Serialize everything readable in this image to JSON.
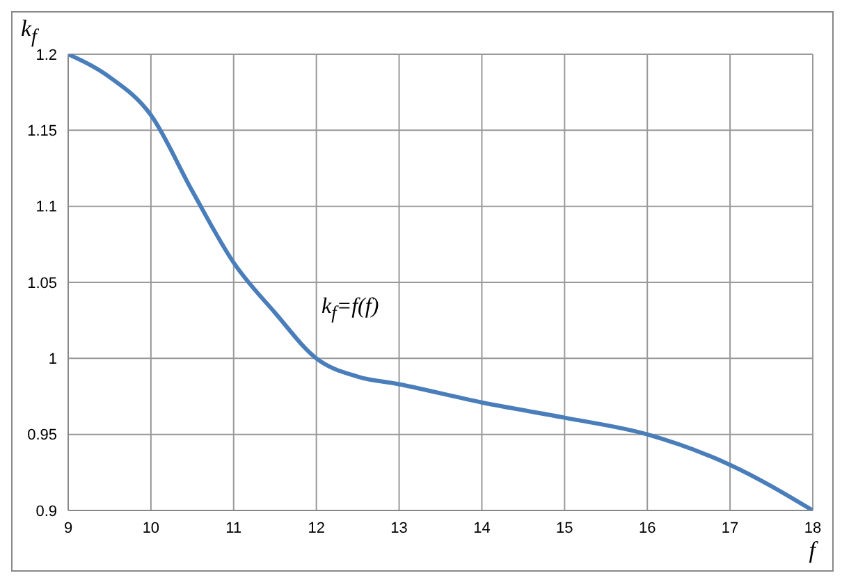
{
  "chart_data": {
    "type": "line",
    "xlabel": "f",
    "ylabel": "k$_{f}$",
    "annotations": [
      "k$_{f}$=f(f)"
    ],
    "x": [
      9,
      9.5,
      10,
      10.5,
      11,
      11.5,
      12,
      12.5,
      13,
      14,
      15,
      16,
      17,
      18
    ],
    "series": [
      {
        "color": "#4a7ebb",
        "values": [
          1.2,
          1.185,
          1.16,
          1.11,
          1.063,
          1.03,
          1.0,
          0.988,
          0.983,
          0.971,
          0.961,
          0.95,
          0.93,
          0.9
        ]
      }
    ],
    "xlim": [
      9,
      18
    ],
    "xticks": [
      9,
      10,
      11,
      12,
      13,
      14,
      15,
      16,
      17,
      18
    ],
    "ylim": [
      0.9,
      1.2
    ],
    "yticks": [
      0.9,
      0.95,
      1,
      1.05,
      1.1,
      1.15,
      1.2
    ],
    "grid": true,
    "legend": false,
    "marker": "none",
    "line_style": "solid"
  }
}
